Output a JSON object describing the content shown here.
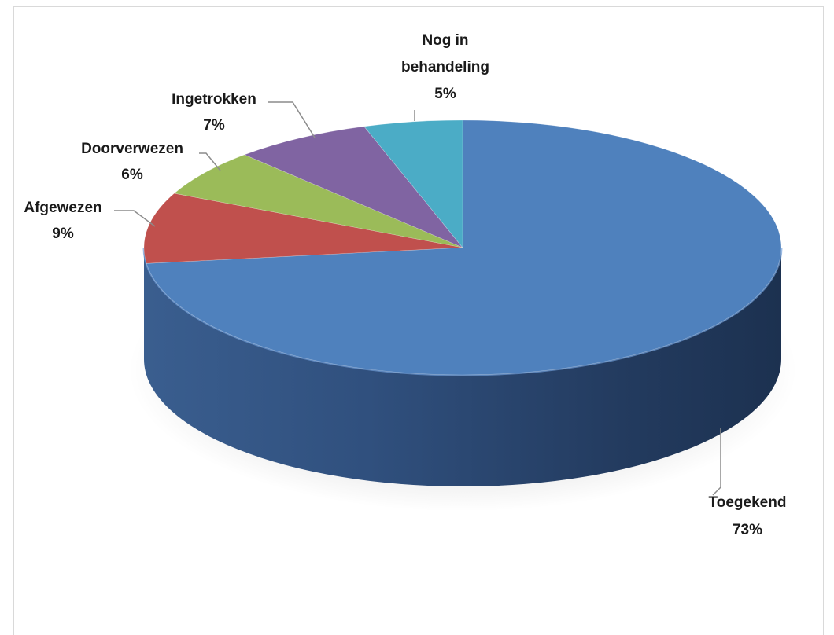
{
  "chart_data": {
    "type": "pie",
    "style": "3d",
    "title": "",
    "slices": [
      {
        "label": "Toegekend",
        "value": 73,
        "display": "73%",
        "color": "#4f81bd"
      },
      {
        "label": "Afgewezen",
        "value": 9,
        "display": "9%",
        "color": "#c0504d"
      },
      {
        "label": "Doorverwezen",
        "value": 6,
        "display": "6%",
        "color": "#9bbb59"
      },
      {
        "label": "Ingetrokken",
        "value": 7,
        "display": "7%",
        "color": "#8064a2"
      },
      {
        "label": "Nog in behandeling",
        "label_lines": [
          "Nog in",
          "behandeling"
        ],
        "value": 5,
        "display": "5%",
        "color": "#4bacc6"
      }
    ],
    "legend": "none",
    "data_labels": "outside-with-leader-lines"
  }
}
